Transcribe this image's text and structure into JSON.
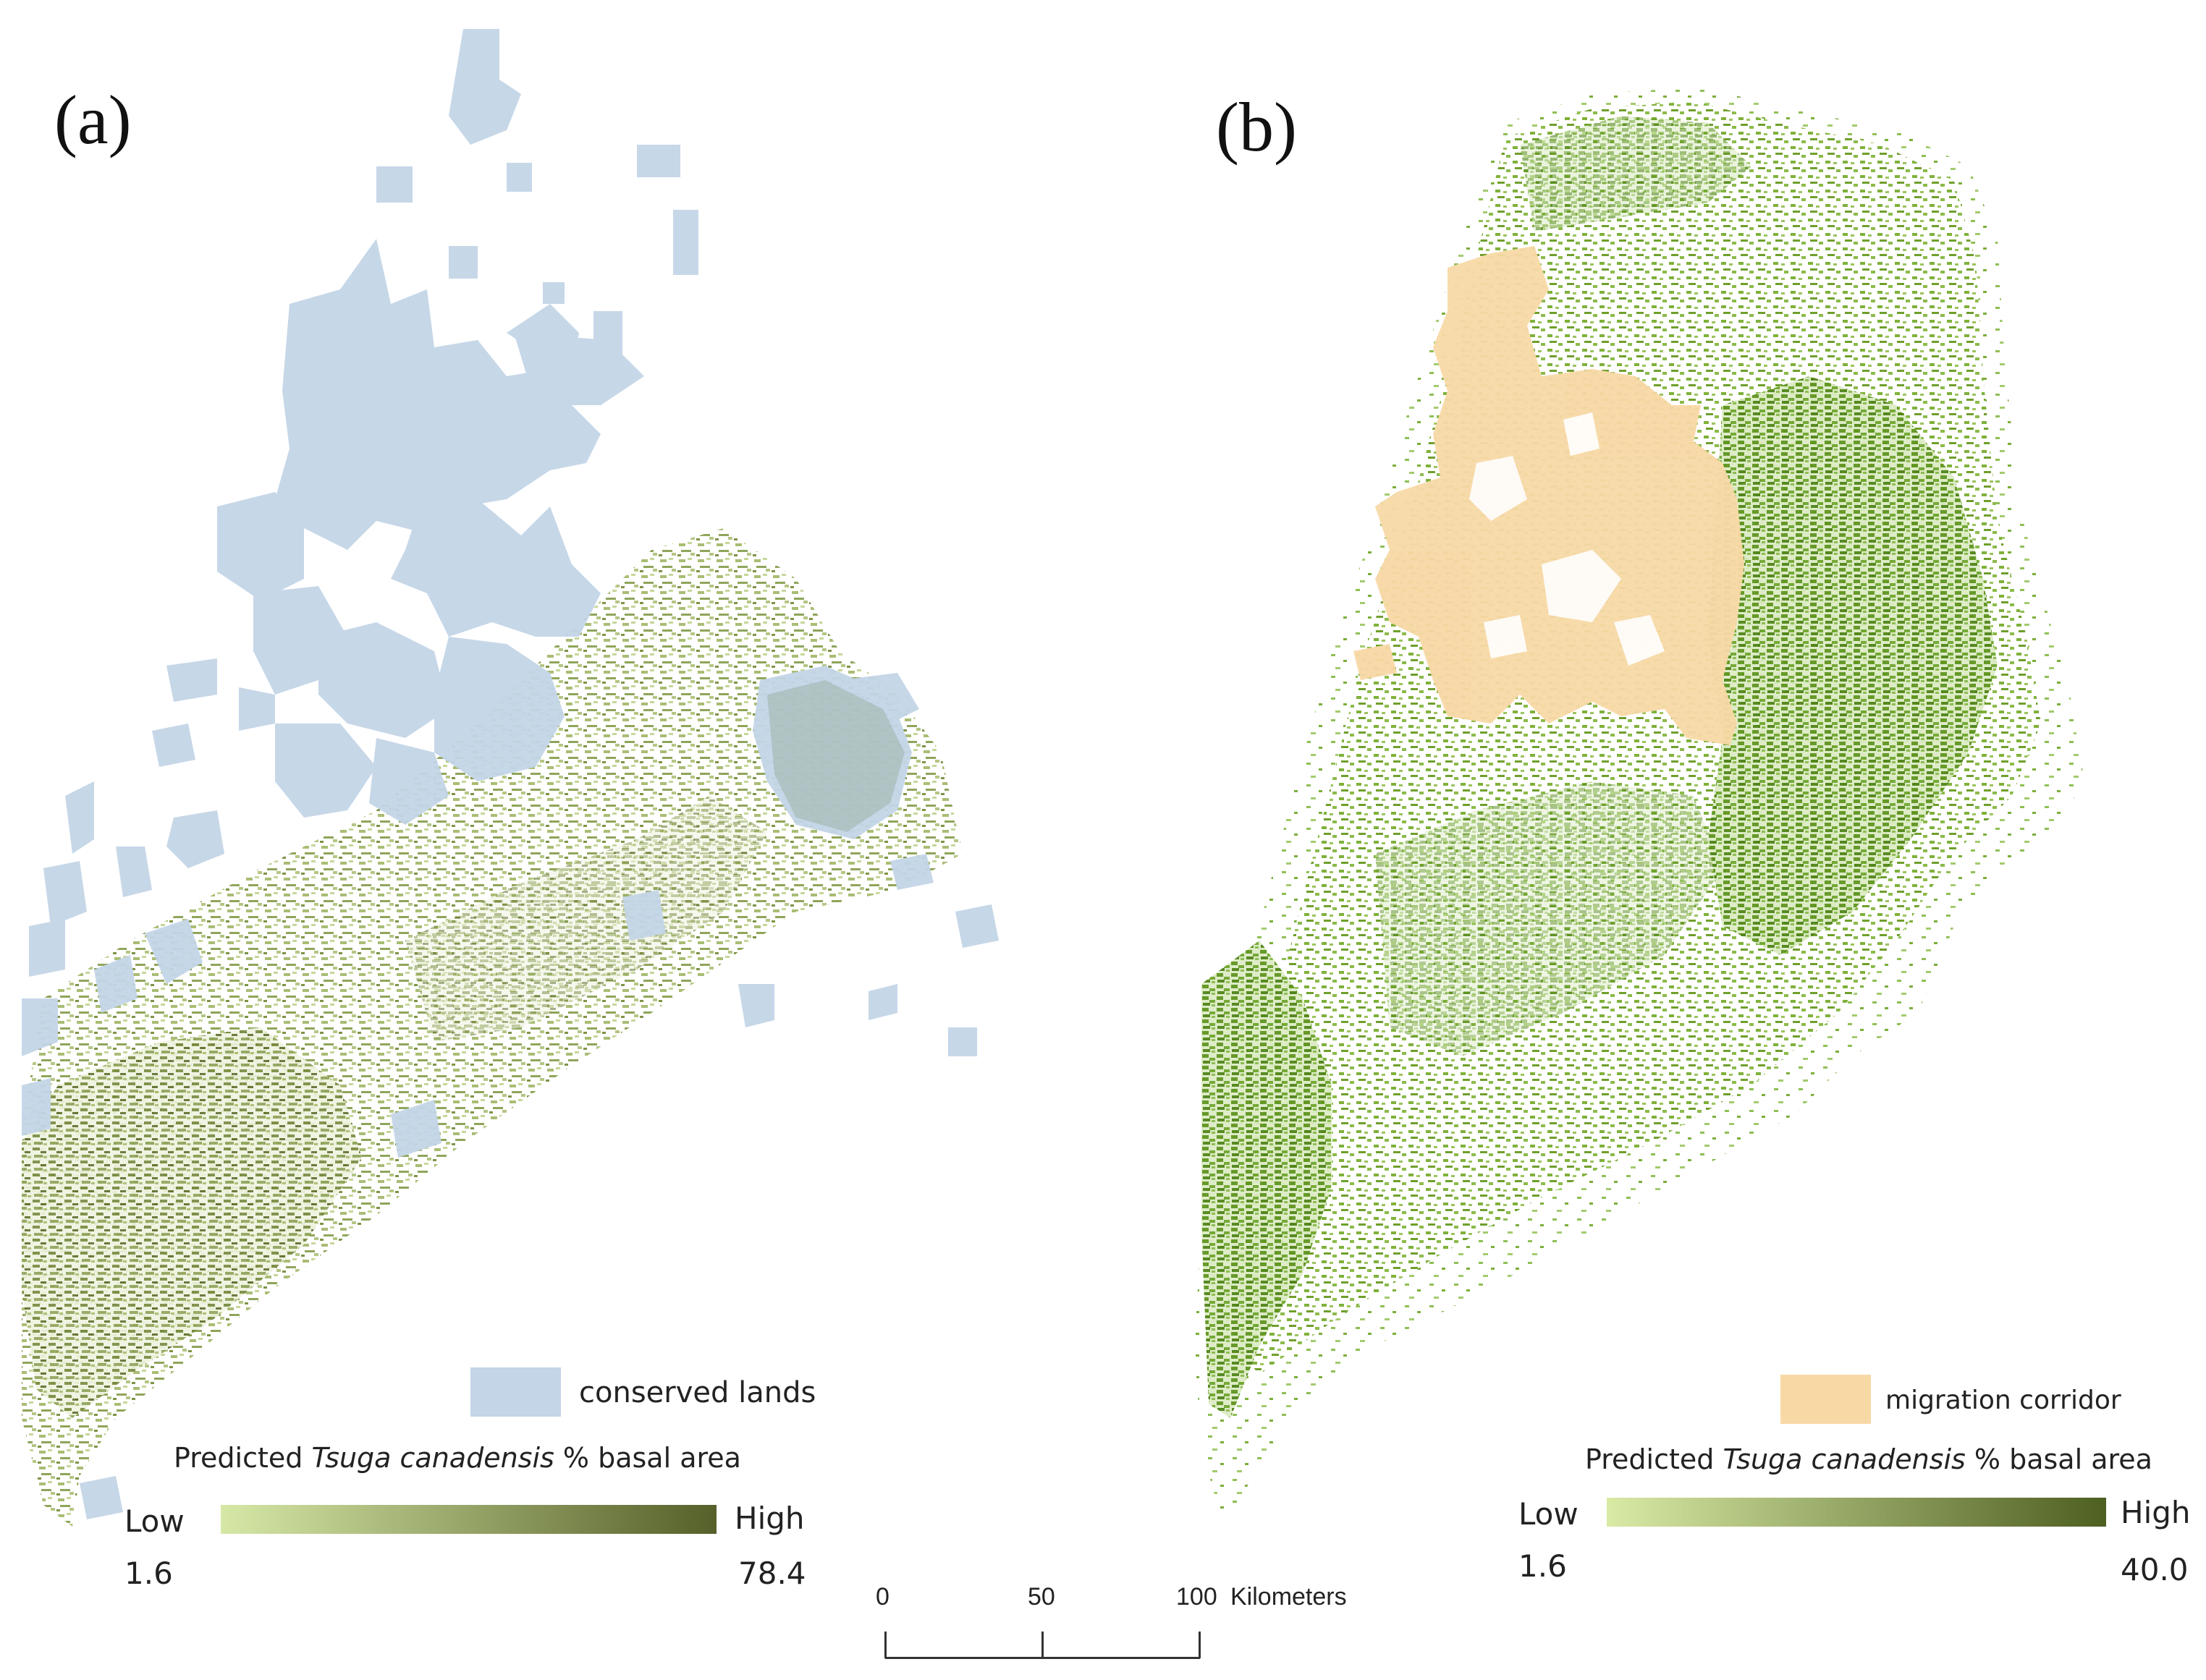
{
  "panels": [
    {
      "label": "(a)",
      "overlay_legend": {
        "label": "conserved lands",
        "color": "#c3d5e7"
      },
      "ramp_legend": {
        "title_prefix": "Predicted ",
        "title_species": "Tsuga canadensis",
        "title_suffix": " % basal area",
        "low_label": "Low",
        "high_label": "High",
        "min_value": "1.6",
        "max_value": "78.4",
        "color_low": "#d6e8a6",
        "color_high": "#56602a"
      }
    },
    {
      "label": "(b)",
      "overlay_legend": {
        "label": "migration corridor",
        "color": "#f8d9a6"
      },
      "ramp_legend": {
        "title_prefix": "Predicted ",
        "title_species": "Tsuga canadensis",
        "title_suffix": " % basal area",
        "low_label": "Low",
        "high_label": "High",
        "min_value": "1.6",
        "max_value": "40.0",
        "color_low": "#d8eaa4",
        "color_high": "#4e5f22"
      }
    }
  ],
  "scale_bar": {
    "ticks": [
      "0",
      "50",
      "100"
    ],
    "unit": "Kilometers"
  },
  "colors": {
    "hemlock_a": "#9fb56a",
    "hemlock_a_dark": "#6f7f3a",
    "hemlock_b": "#7eae3a",
    "hemlock_b_dark": "#5d8d22"
  }
}
